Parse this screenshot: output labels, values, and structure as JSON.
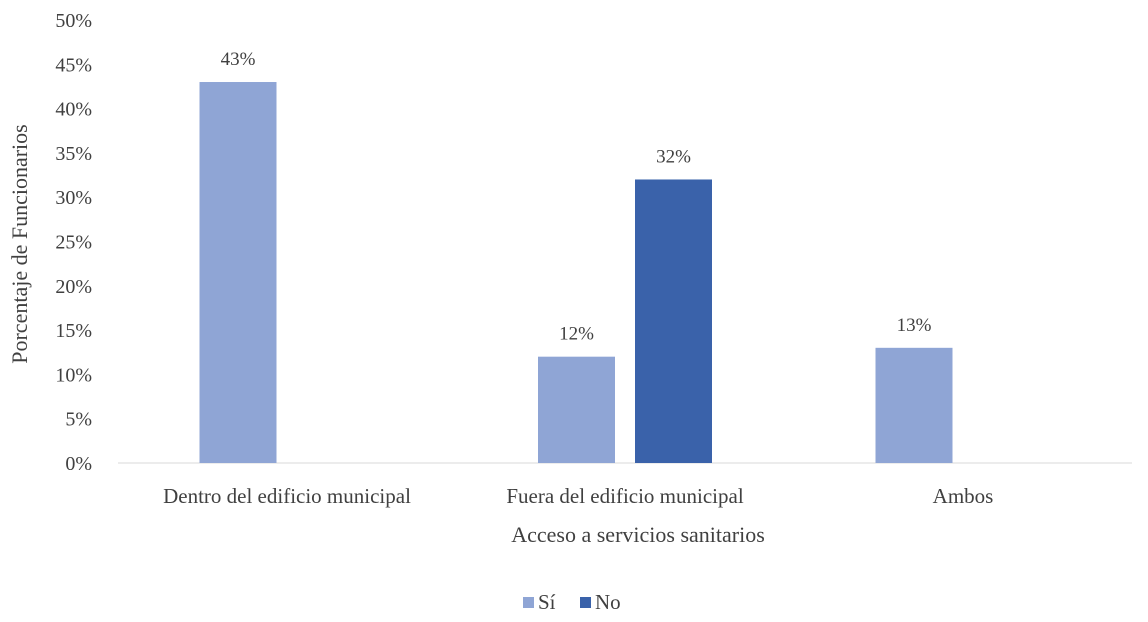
{
  "chart_data": {
    "type": "bar",
    "title": "",
    "xlabel": "Acceso a servicios sanitarios",
    "ylabel": "Porcentaje de Funcionarios",
    "categories": [
      "Dentro del edificio municipal",
      "Fuera del edificio municipal",
      "Ambos"
    ],
    "series": [
      {
        "name": "Sí",
        "values": [
          43,
          null,
          13
        ],
        "color": "#8FA5D5"
      },
      {
        "name": "Sí",
        "values": [
          null,
          12,
          null
        ],
        "color": "#8FA5D5"
      },
      {
        "name": "No",
        "values": [
          null,
          32,
          null
        ],
        "color": "#3A62AA"
      }
    ],
    "value_labels": [
      {
        "category": 0,
        "series": 0,
        "text": "43%"
      },
      {
        "category": 1,
        "series": 1,
        "text": "12%"
      },
      {
        "category": 1,
        "series": 2,
        "text": "32%"
      },
      {
        "category": 2,
        "series": 0,
        "text": "13%"
      }
    ],
    "ylim": [
      0,
      50
    ],
    "yticks": [
      "0%",
      "5%",
      "10%",
      "15%",
      "20%",
      "25%",
      "30%",
      "35%",
      "40%",
      "45%",
      "50%"
    ],
    "grid": false,
    "legend": {
      "position": "bottom",
      "entries": [
        {
          "label": "Sí",
          "color": "#8FA5D5"
        },
        {
          "label": "No",
          "color": "#3A62AA"
        }
      ]
    },
    "axis_color": "#D9D9D9"
  }
}
